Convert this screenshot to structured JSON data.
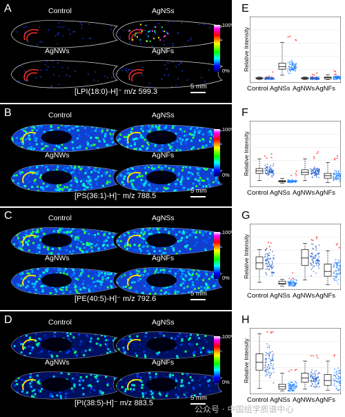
{
  "panels": [
    {
      "letter": "A",
      "conditions": [
        "Control",
        "AgNSs",
        "AgNWs",
        "AgNFs"
      ],
      "caption": "[LPI(18:0)-H]⁻ m/z 599.3",
      "scale": "5 mm",
      "top_pct": "100%",
      "bot_pct": "0%",
      "style": "sparse"
    },
    {
      "letter": "B",
      "conditions": [
        "Control",
        "AgNSs",
        "AgNWs",
        "AgNFs"
      ],
      "caption": "[PS(36:1)-H]⁻ m/z 788.5",
      "scale": "5 mm",
      "top_pct": "100%",
      "bot_pct": "0%",
      "style": "dense"
    },
    {
      "letter": "C",
      "conditions": [
        "Control",
        "AgNSs",
        "AgNWs",
        "AgNFs"
      ],
      "caption": "[PE(40:5)-H]⁻ m/z 792.6",
      "scale": "5 mm",
      "top_pct": "100%",
      "bot_pct": "0%",
      "style": "dense"
    },
    {
      "letter": "D",
      "conditions": [
        "Control",
        "AgNSs",
        "AgNWs",
        "AgNFs"
      ],
      "caption": "[PI(38:5)-H]⁻ m/z 883.5",
      "scale": "5 mm",
      "top_pct": "100%",
      "bot_pct": "0%",
      "style": "dark"
    }
  ],
  "plots": [
    {
      "letter": "E",
      "ylabel": "Relative Intensity",
      "categories": [
        "Control",
        "AgNSs",
        "AgNWs",
        "AgNFs"
      ]
    },
    {
      "letter": "F",
      "ylabel": "Relative Intensity",
      "categories": [
        "Control",
        "AgNSs",
        "AgNWs",
        "AgNFs"
      ]
    },
    {
      "letter": "G",
      "ylabel": "Relative Intensity",
      "categories": [
        "Control",
        "AgNSs",
        "AgNWs",
        "AgNFs"
      ]
    },
    {
      "letter": "H",
      "ylabel": "Relative Intensity",
      "categories": [
        "Control",
        "AgNSs",
        "AgNWs",
        "AgNFs"
      ]
    }
  ],
  "chart_data": [
    {
      "type": "box",
      "title": "",
      "ylabel": "Relative Intensity",
      "categories": [
        "Control",
        "AgNSs",
        "AgNWs",
        "AgNFs"
      ],
      "boxes": [
        {
          "q1": 0.02,
          "median": 0.03,
          "q3": 0.04,
          "whisker_low": 0.01,
          "whisker_high": 0.05
        },
        {
          "q1": 0.18,
          "median": 0.22,
          "q3": 0.28,
          "whisker_low": 0.08,
          "whisker_high": 0.62
        },
        {
          "q1": 0.02,
          "median": 0.03,
          "q3": 0.04,
          "whisker_low": 0.01,
          "whisker_high": 0.05
        },
        {
          "q1": 0.02,
          "median": 0.04,
          "q3": 0.05,
          "whisker_low": 0.01,
          "whisker_high": 0.09
        }
      ]
    },
    {
      "type": "box",
      "title": "",
      "ylabel": "Relative Intensity",
      "categories": [
        "Control",
        "AgNSs",
        "AgNWs",
        "AgNFs"
      ],
      "boxes": [
        {
          "q1": 0.18,
          "median": 0.22,
          "q3": 0.26,
          "whisker_low": 0.06,
          "whisker_high": 0.42
        },
        {
          "q1": 0.04,
          "median": 0.05,
          "q3": 0.06,
          "whisker_low": 0.02,
          "whisker_high": 0.1
        },
        {
          "q1": 0.16,
          "median": 0.2,
          "q3": 0.24,
          "whisker_low": 0.06,
          "whisker_high": 0.42
        },
        {
          "q1": 0.1,
          "median": 0.14,
          "q3": 0.18,
          "whisker_low": 0.03,
          "whisker_high": 0.36
        }
      ]
    },
    {
      "type": "box",
      "title": "",
      "ylabel": "Relative Intensity",
      "categories": [
        "Control",
        "AgNSs",
        "AgNWs",
        "AgNFs"
      ],
      "boxes": [
        {
          "q1": 0.3,
          "median": 0.4,
          "q3": 0.5,
          "whisker_low": 0.08,
          "whisker_high": 0.62
        },
        {
          "q1": 0.05,
          "median": 0.06,
          "q3": 0.1,
          "whisker_low": 0.02,
          "whisker_high": 0.13
        },
        {
          "q1": 0.36,
          "median": 0.48,
          "q3": 0.62,
          "whisker_low": 0.12,
          "whisker_high": 0.72
        },
        {
          "q1": 0.18,
          "median": 0.26,
          "q3": 0.38,
          "whisker_low": 0.04,
          "whisker_high": 0.6
        }
      ]
    },
    {
      "type": "box",
      "title": "",
      "ylabel": "Relative Intensity",
      "categories": [
        "Control",
        "AgNSs",
        "AgNWs",
        "AgNFs"
      ],
      "boxes": [
        {
          "q1": 0.35,
          "median": 0.48,
          "q3": 0.62,
          "whisker_low": 0.05,
          "whisker_high": 0.95
        },
        {
          "q1": 0.04,
          "median": 0.08,
          "q3": 0.12,
          "whisker_low": 0.01,
          "whisker_high": 0.3
        },
        {
          "q1": 0.15,
          "median": 0.22,
          "q3": 0.3,
          "whisker_low": 0.04,
          "whisker_high": 0.5
        },
        {
          "q1": 0.1,
          "median": 0.18,
          "q3": 0.28,
          "whisker_low": 0.02,
          "whisker_high": 0.5
        }
      ]
    }
  ],
  "watermark": "公众号 · 中国组学质谱中心"
}
